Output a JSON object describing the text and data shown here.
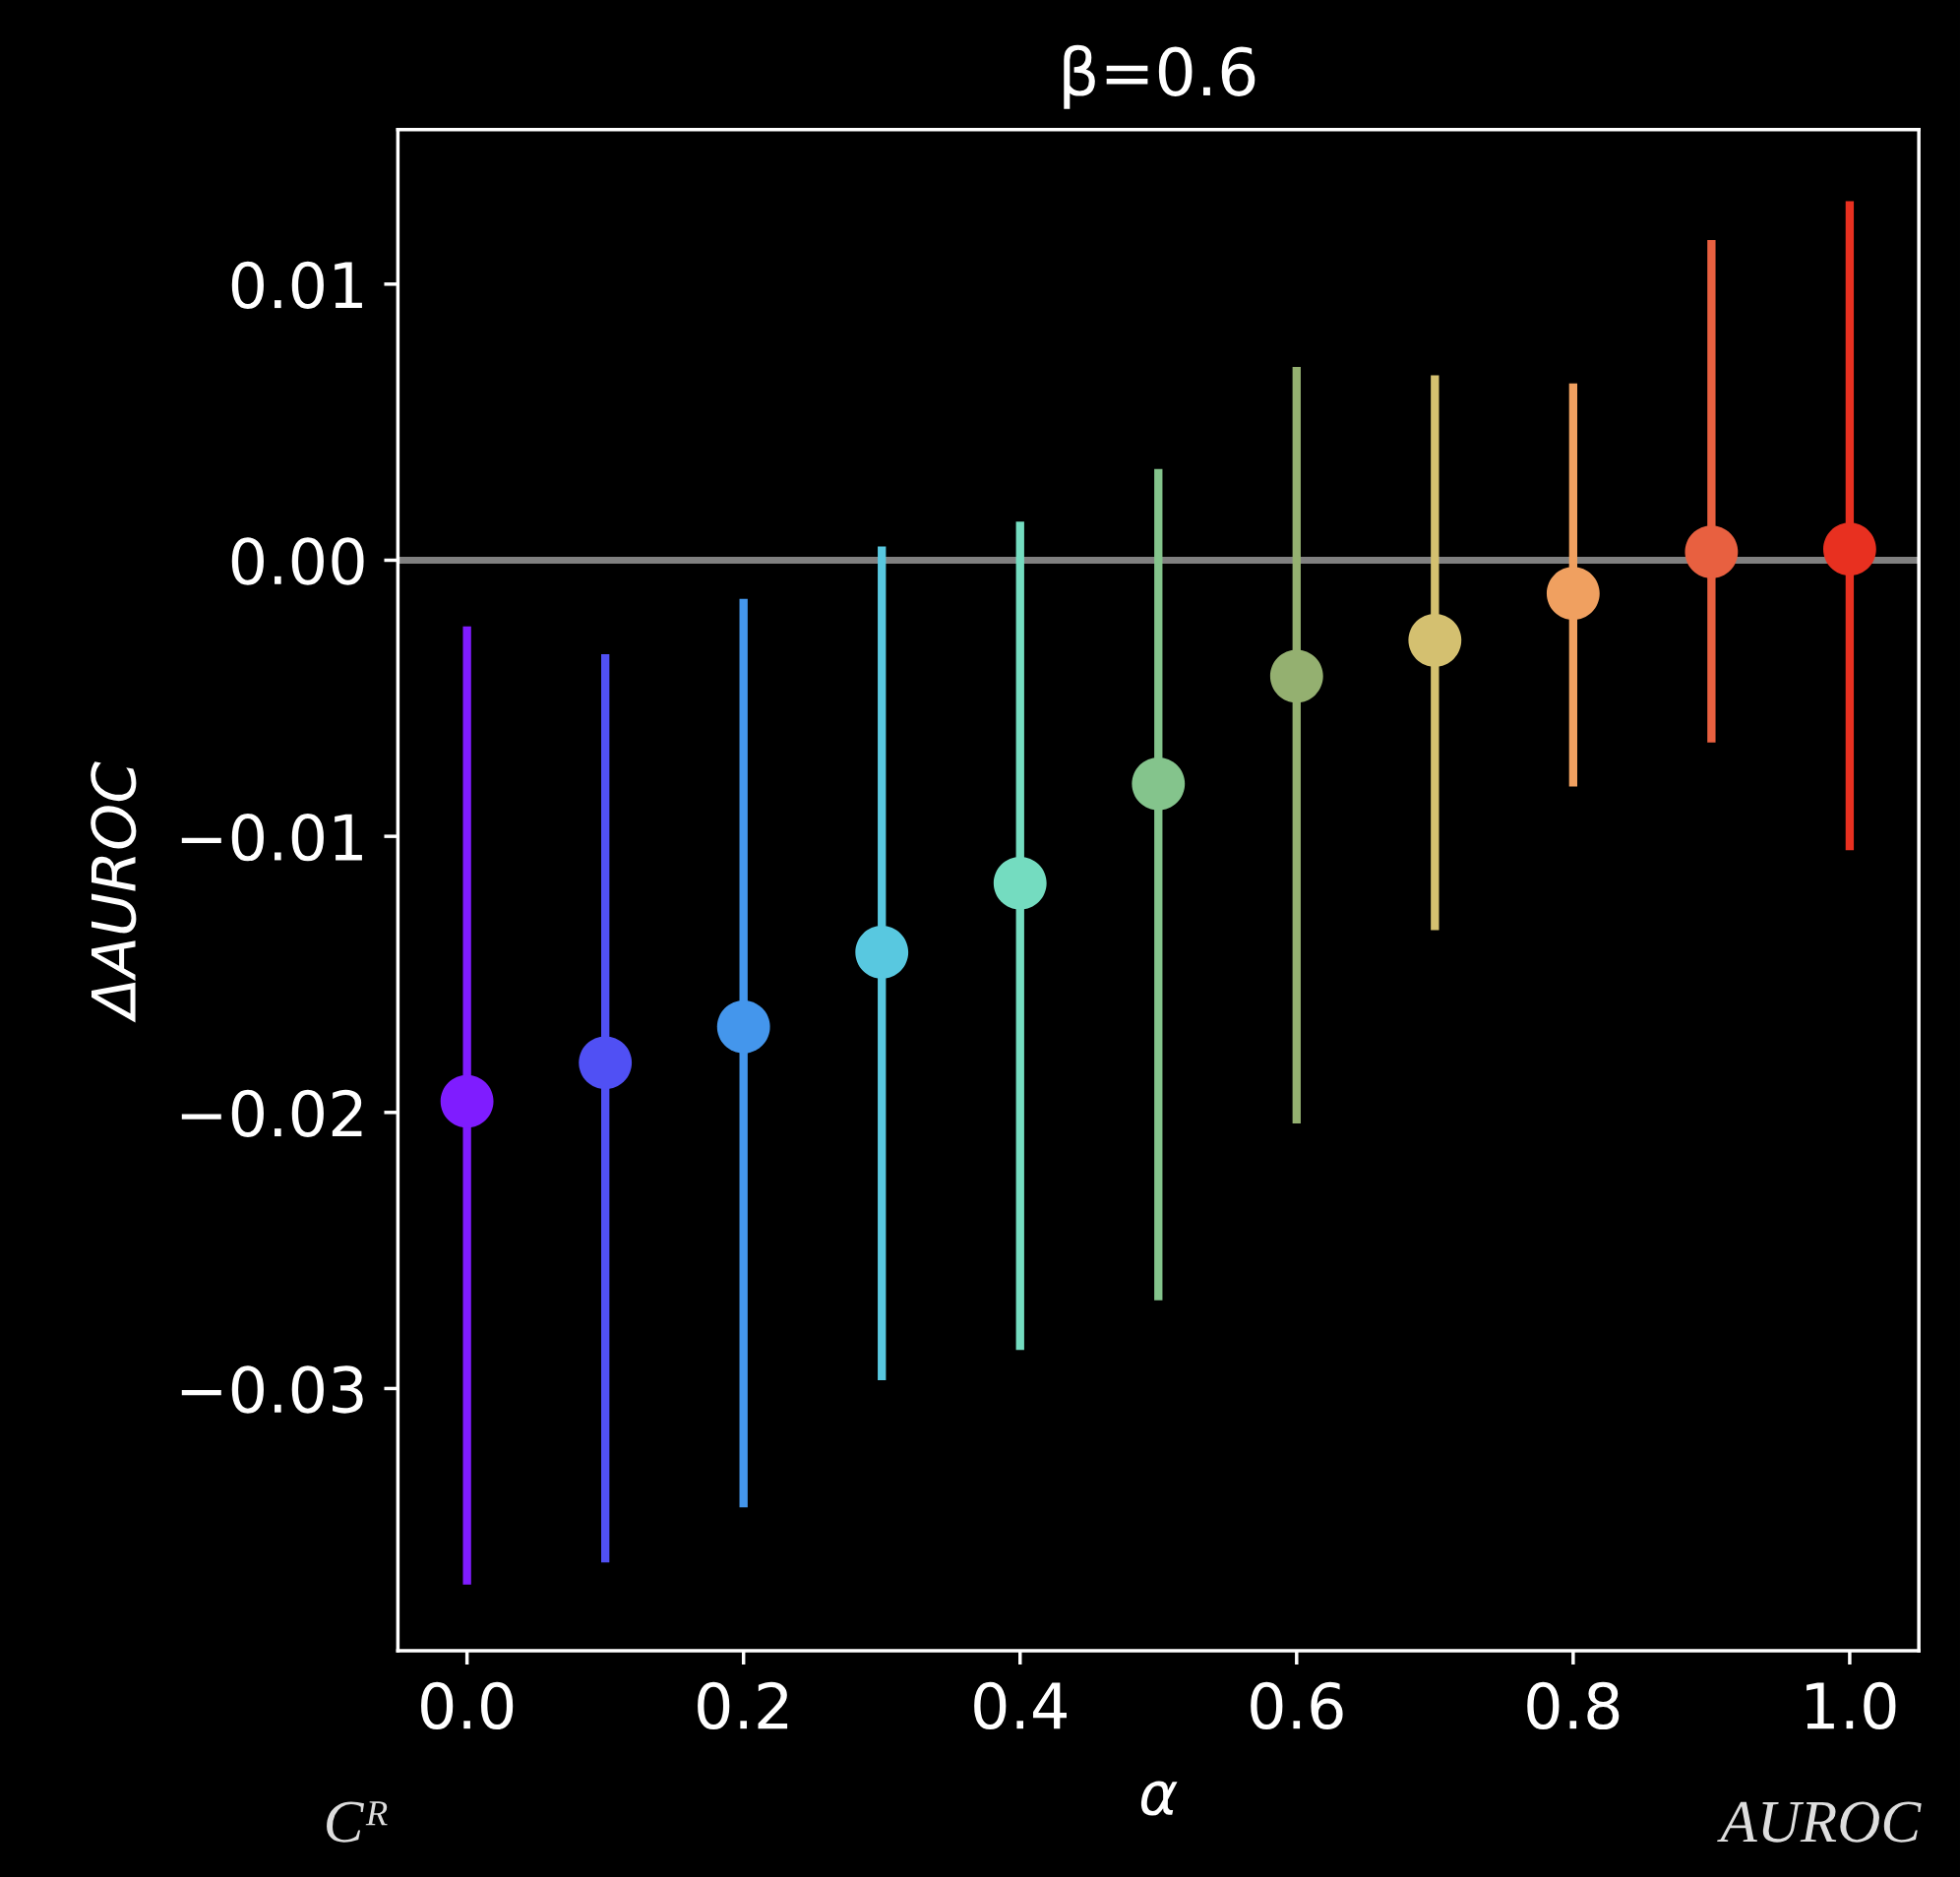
{
  "chart_data": {
    "type": "scatter",
    "title": "β=0.6",
    "xlabel": "α",
    "ylabel": "ΔAUROC",
    "x": [
      0.0,
      0.1,
      0.2,
      0.3,
      0.4,
      0.5,
      0.6,
      0.7,
      0.8,
      0.9,
      1.0
    ],
    "values": [
      -0.0196,
      -0.0182,
      -0.0169,
      -0.0142,
      -0.0117,
      -0.0081,
      -0.0042,
      -0.0029,
      -0.0012,
      0.0003,
      0.0004
    ],
    "errors": [
      [
        -0.0371,
        -0.0024
      ],
      [
        -0.0363,
        -0.0034
      ],
      [
        -0.0343,
        -0.0014
      ],
      [
        -0.0297,
        0.0005
      ],
      [
        -0.0286,
        0.0014
      ],
      [
        -0.0268,
        0.0033
      ],
      [
        -0.0204,
        0.007
      ],
      [
        -0.0134,
        0.0067
      ],
      [
        -0.0082,
        0.0064
      ],
      [
        -0.0066,
        0.0116
      ],
      [
        -0.0105,
        0.013
      ]
    ],
    "colors": [
      "#7f1cff",
      "#5050f4",
      "#4496ec",
      "#58c8e0",
      "#74dcc0",
      "#84c48c",
      "#94b070",
      "#d4c070",
      "#f0a060",
      "#e86040",
      "#e83020"
    ],
    "marker": "circle",
    "grid": false,
    "legend": false,
    "xlim": [
      -0.05,
      1.05
    ],
    "xticks": [
      {
        "value": 0.0,
        "label": "0.0"
      },
      0.2,
      0.4,
      0.6,
      0.8,
      {
        "value": 1.0,
        "label": "1.0"
      }
    ],
    "ylim": [
      -0.0395,
      0.0156
    ],
    "yticks": [
      {
        "value": -0.03,
        "label": "−0.03"
      },
      {
        "value": -0.02,
        "label": "−0.02"
      },
      {
        "value": -0.01,
        "label": "−0.01"
      },
      {
        "value": 0.0,
        "label": "0.00"
      },
      0.01
    ],
    "ref_lines": [
      {
        "axis": "y",
        "value": 0,
        "label": null,
        "color": "#808080"
      }
    ],
    "annotations": [
      "Cᴿ",
      "AUROC"
    ]
  }
}
